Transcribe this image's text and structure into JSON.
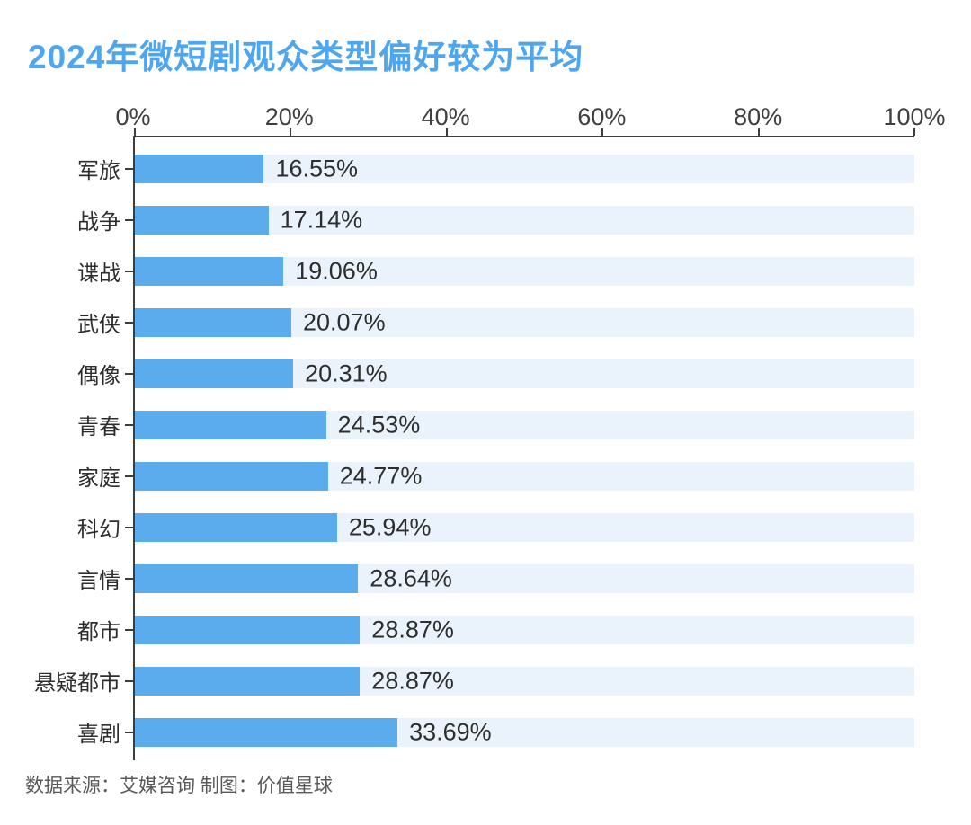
{
  "title": "2024年微短剧观众类型偏好较为平均",
  "source_note": "数据来源：艾媒咨询 制图：价值星球",
  "colors": {
    "bar": "#5aacec",
    "track": "#eaf3fc",
    "title_text": "#4fa6f0",
    "axis_line": "#3d3d3d",
    "value_text": "#2e2e2e",
    "tick_text": "#3f3f3f",
    "source_text": "#595959"
  },
  "chart_data": {
    "type": "bar",
    "orientation": "horizontal",
    "title": "2024年微短剧观众类型偏好较为平均",
    "xlabel": "",
    "ylabel": "",
    "xlim": [
      0,
      100
    ],
    "grid": false,
    "legend": "none",
    "x_ticks": [
      "0%",
      "20%",
      "40%",
      "60%",
      "80%",
      "100%"
    ],
    "x_tick_values": [
      0,
      20,
      40,
      60,
      80,
      100
    ],
    "categories": [
      "军旅",
      "战争",
      "谍战",
      "武侠",
      "偶像",
      "青春",
      "家庭",
      "科幻",
      "言情",
      "都市",
      "悬疑都市",
      "喜剧"
    ],
    "values": [
      16.55,
      17.14,
      19.06,
      20.07,
      20.31,
      24.53,
      24.77,
      25.94,
      28.64,
      28.87,
      28.87,
      33.69
    ],
    "value_labels": [
      "16.55%",
      "17.14%",
      "19.06%",
      "20.07%",
      "20.31%",
      "24.53%",
      "24.77%",
      "25.94%",
      "28.64%",
      "28.87%",
      "28.87%",
      "33.69%"
    ],
    "bar_track_full_width": true,
    "value_label_position": "right-of-bar"
  }
}
